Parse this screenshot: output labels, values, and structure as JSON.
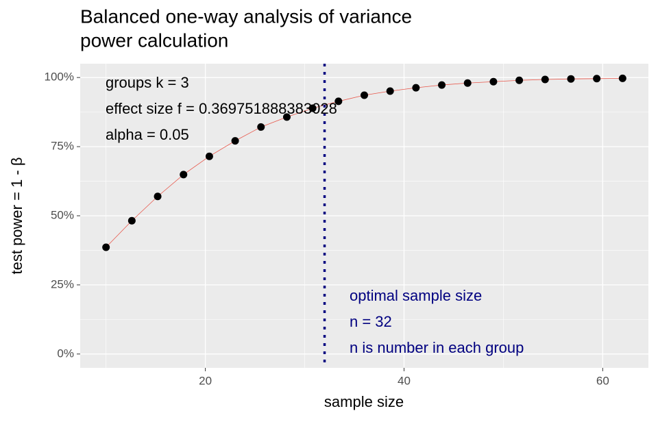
{
  "chart_data": {
    "type": "line",
    "title": [
      "Balanced one-way analysis of variance",
      "power calculation"
    ],
    "x_label": "sample size",
    "y_label": "test power = 1 - β",
    "x": [
      10,
      12.6,
      15.2,
      17.8,
      20.4,
      23,
      25.6,
      28.2,
      30.8,
      33.4,
      36,
      38.6,
      41.2,
      43.8,
      46.4,
      49,
      51.6,
      54.2,
      56.8,
      59.4,
      62
    ],
    "series": [
      {
        "name": "power",
        "color": "#e8564a",
        "point_color": "#000000",
        "values": [
          38.6,
          48.2,
          57.0,
          64.9,
          71.5,
          77.1,
          82.1,
          85.7,
          88.9,
          91.4,
          93.6,
          95.1,
          96.3,
          97.3,
          98.0,
          98.5,
          99.0,
          99.3,
          99.5,
          99.6,
          99.7
        ]
      }
    ],
    "xlim": [
      7.4,
      64.6
    ],
    "xticks": [
      20,
      40,
      60
    ],
    "ylim": [
      -5,
      105
    ],
    "yticks": [
      {
        "value": 0,
        "label": "0%"
      },
      {
        "value": 25,
        "label": "25%"
      },
      {
        "value": 50,
        "label": "50%"
      },
      {
        "value": 75,
        "label": "75%"
      },
      {
        "value": 100,
        "label": "100%"
      }
    ],
    "grid": true,
    "vline": {
      "x": 32,
      "color": "#000080"
    },
    "annotations": [
      {
        "lines": [
          "groups k = 3",
          "effect size f = 0.369751888383028",
          "alpha = 0.05"
        ],
        "color": "#000000"
      },
      {
        "lines": [
          "optimal sample size",
          "n = 32",
          "n is number in each group"
        ],
        "color": "#000080"
      }
    ]
  }
}
